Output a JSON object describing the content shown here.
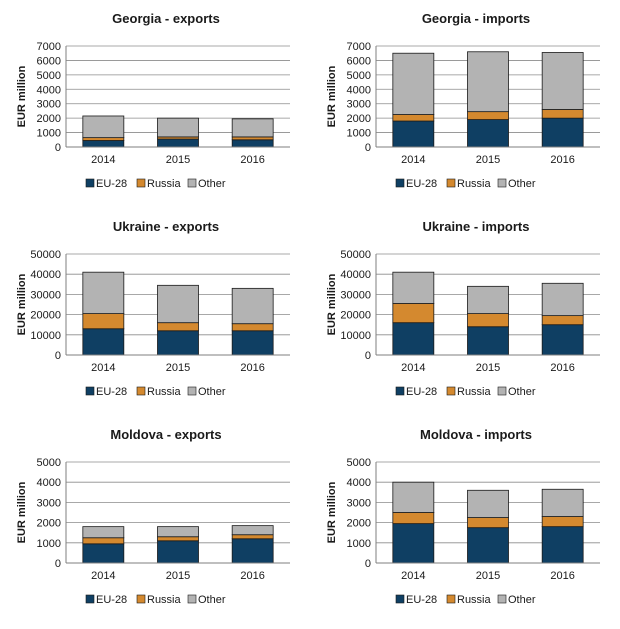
{
  "colors": {
    "eu": "#0f3f63",
    "russia": "#d4892f",
    "other": "#b3b3b3",
    "grid": "#8c8c8c",
    "axis": "#7f7f7f"
  },
  "chart_data": [
    {
      "type": "bar",
      "stacked": true,
      "title": "Georgia - exports",
      "ylabel": "EUR million",
      "ylim": [
        0,
        7000
      ],
      "yticks": [
        "0",
        "1000",
        "2000",
        "3000",
        "4000",
        "5000",
        "6000",
        "7000"
      ],
      "categories": [
        "2014",
        "2015",
        "2016"
      ],
      "series": [
        {
          "name": "EU-28",
          "values": [
            450,
            550,
            500
          ]
        },
        {
          "name": "Russia",
          "values": [
            200,
            150,
            200
          ]
        },
        {
          "name": "Other",
          "values": [
            1500,
            1300,
            1250
          ]
        }
      ],
      "legend_position": "bottom",
      "grid": true
    },
    {
      "type": "bar",
      "stacked": true,
      "title": "Georgia - imports",
      "ylabel": "EUR million",
      "ylim": [
        0,
        7000
      ],
      "yticks": [
        "0",
        "1000",
        "2000",
        "3000",
        "4000",
        "5000",
        "6000",
        "7000"
      ],
      "categories": [
        "2014",
        "2015",
        "2016"
      ],
      "series": [
        {
          "name": "EU-28",
          "values": [
            1800,
            1900,
            2000
          ]
        },
        {
          "name": "Russia",
          "values": [
            450,
            550,
            600
          ]
        },
        {
          "name": "Other",
          "values": [
            4250,
            4150,
            3950
          ]
        }
      ],
      "legend_position": "bottom",
      "grid": true
    },
    {
      "type": "bar",
      "stacked": true,
      "title": "Ukraine - exports",
      "ylabel": "EUR million",
      "ylim": [
        0,
        50000
      ],
      "yticks": [
        "0",
        "10000",
        "20000",
        "30000",
        "40000",
        "50000"
      ],
      "categories": [
        "2014",
        "2015",
        "2016"
      ],
      "series": [
        {
          "name": "EU-28",
          "values": [
            13000,
            12000,
            12000
          ]
        },
        {
          "name": "Russia",
          "values": [
            7500,
            4000,
            3500
          ]
        },
        {
          "name": "Other",
          "values": [
            20500,
            18500,
            17500
          ]
        }
      ],
      "legend_position": "bottom",
      "grid": true
    },
    {
      "type": "bar",
      "stacked": true,
      "title": "Ukraine - imports",
      "ylabel": "EUR million",
      "ylim": [
        0,
        50000
      ],
      "yticks": [
        "0",
        "10000",
        "20000",
        "30000",
        "40000",
        "50000"
      ],
      "categories": [
        "2014",
        "2015",
        "2016"
      ],
      "series": [
        {
          "name": "EU-28",
          "values": [
            16000,
            14000,
            15000
          ]
        },
        {
          "name": "Russia",
          "values": [
            9500,
            6500,
            4500
          ]
        },
        {
          "name": "Other",
          "values": [
            15500,
            13500,
            16000
          ]
        }
      ],
      "legend_position": "bottom",
      "grid": true
    },
    {
      "type": "bar",
      "stacked": true,
      "title": "Moldova - exports",
      "ylabel": "EUR million",
      "ylim": [
        0,
        5000
      ],
      "yticks": [
        "0",
        "1000",
        "2000",
        "3000",
        "4000",
        "5000"
      ],
      "categories": [
        "2014",
        "2015",
        "2016"
      ],
      "series": [
        {
          "name": "EU-28",
          "values": [
            950,
            1100,
            1200
          ]
        },
        {
          "name": "Russia",
          "values": [
            300,
            200,
            200
          ]
        },
        {
          "name": "Other",
          "values": [
            550,
            500,
            450
          ]
        }
      ],
      "legend_position": "bottom",
      "grid": true
    },
    {
      "type": "bar",
      "stacked": true,
      "title": "Moldova - imports",
      "ylabel": "EUR million",
      "ylim": [
        0,
        5000
      ],
      "yticks": [
        "0",
        "1000",
        "2000",
        "3000",
        "4000",
        "5000"
      ],
      "categories": [
        "2014",
        "2015",
        "2016"
      ],
      "series": [
        {
          "name": "EU-28",
          "values": [
            1950,
            1750,
            1800
          ]
        },
        {
          "name": "Russia",
          "values": [
            550,
            500,
            500
          ]
        },
        {
          "name": "Other",
          "values": [
            1500,
            1350,
            1350
          ]
        }
      ],
      "legend_position": "bottom",
      "grid": true
    }
  ]
}
